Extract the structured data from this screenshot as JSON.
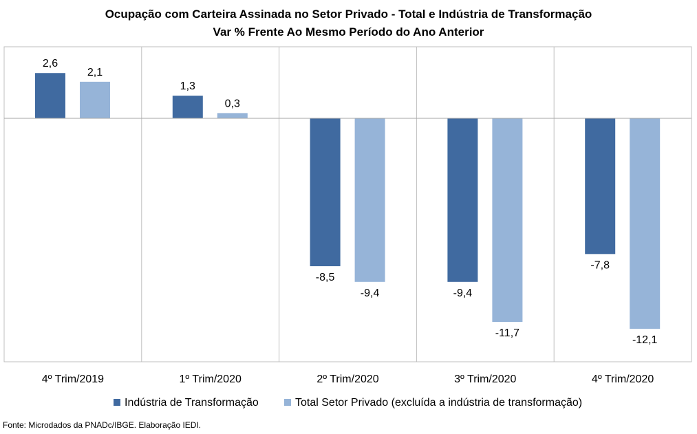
{
  "chart_data": {
    "type": "bar",
    "title": "Ocupação com Carteira Assinada no Setor Privado - Total e Indústria de Transformação",
    "subtitle": "Var % Frente Ao Mesmo Período do Ano Anterior",
    "categories": [
      "4º Trim/2019",
      "1º Trim/2020",
      "2º Trim/2020",
      "3º Trim/2020",
      "4º Trim/2020"
    ],
    "series": [
      {
        "name": "Indústria de Transformação",
        "color": "#406aa0",
        "values": [
          2.6,
          1.3,
          -8.5,
          -9.4,
          -7.8
        ],
        "labels": [
          "2,6",
          "1,3",
          "-8,5",
          "-9,4",
          "-7,8"
        ]
      },
      {
        "name": "Total Setor Privado (excluída a indústria de transformação)",
        "color": "#96b4d8",
        "values": [
          2.1,
          0.3,
          -9.4,
          -11.7,
          -12.1
        ],
        "labels": [
          "2,1",
          "0,3",
          "-9,4",
          "-11,7",
          "-12,1"
        ]
      }
    ],
    "ylim": [
      -14,
      4
    ],
    "grid": false,
    "vertical_separators": true,
    "legend": "bottom"
  },
  "source": "Fonte: Microdados da PNADc/IBGE. Elaboração IEDI."
}
